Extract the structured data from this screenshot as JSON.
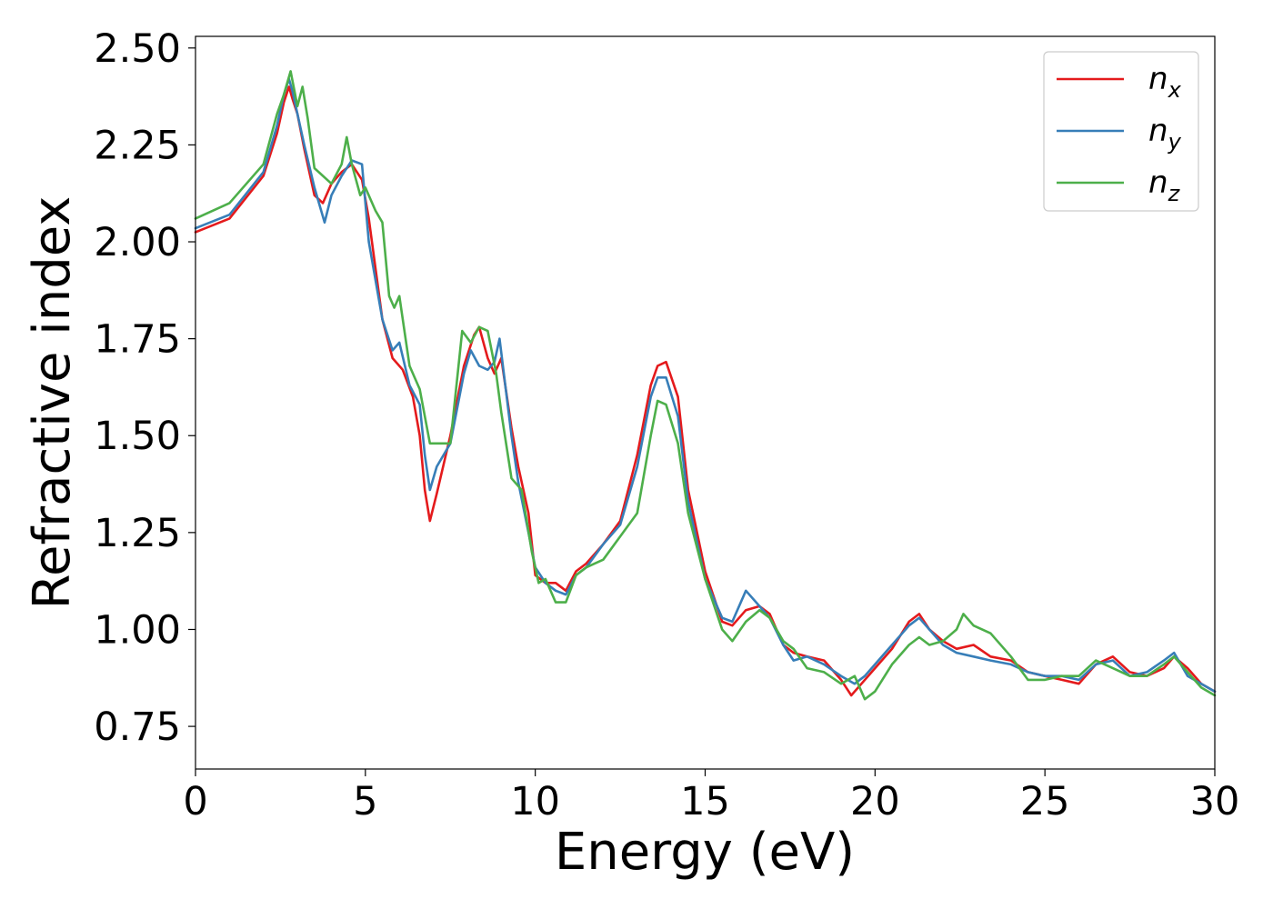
{
  "chart_data": {
    "type": "line",
    "xlabel": "Energy (eV)",
    "ylabel": "Refractive index",
    "xlim": [
      0,
      30
    ],
    "ylim": [
      0.64,
      2.53
    ],
    "xticks": [
      0,
      5,
      10,
      15,
      20,
      25,
      30
    ],
    "xtick_labels": [
      "0",
      "5",
      "10",
      "15",
      "20",
      "25",
      "30"
    ],
    "yticks": [
      0.75,
      1.0,
      1.25,
      1.5,
      1.75,
      2.0,
      2.25,
      2.5
    ],
    "ytick_labels": [
      "0.75",
      "1.00",
      "1.25",
      "1.50",
      "1.75",
      "2.00",
      "2.25",
      "2.50"
    ],
    "grid": false,
    "legend_position": "top-right",
    "series": [
      {
        "name": "n",
        "subscript": "x",
        "color": "#e41a1c",
        "x": [
          0,
          1.0,
          2.0,
          2.4,
          2.6,
          2.75,
          2.85,
          3.0,
          3.2,
          3.5,
          3.75,
          4.0,
          4.3,
          4.6,
          4.9,
          5.1,
          5.5,
          5.8,
          6.1,
          6.4,
          6.6,
          6.75,
          6.9,
          7.1,
          7.5,
          7.9,
          8.2,
          8.35,
          8.6,
          8.8,
          9.0,
          9.3,
          9.5,
          9.8,
          10.0,
          10.3,
          10.6,
          10.9,
          11.2,
          11.5,
          12.0,
          12.5,
          13.0,
          13.4,
          13.6,
          13.85,
          14.2,
          14.5,
          15.0,
          15.5,
          15.8,
          16.2,
          16.6,
          16.9,
          17.3,
          17.6,
          18.0,
          18.5,
          19.0,
          19.3,
          19.6,
          20.0,
          20.5,
          21.0,
          21.3,
          21.6,
          22.0,
          22.4,
          22.9,
          23.4,
          24.0,
          24.5,
          25.0,
          25.5,
          26.0,
          26.5,
          27.0,
          27.5,
          28.0,
          28.5,
          28.8,
          29.2,
          29.6,
          30.0
        ],
        "values": [
          2.025,
          2.06,
          2.17,
          2.28,
          2.36,
          2.4,
          2.37,
          2.33,
          2.24,
          2.12,
          2.1,
          2.15,
          2.18,
          2.2,
          2.16,
          2.06,
          1.8,
          1.7,
          1.67,
          1.6,
          1.5,
          1.36,
          1.28,
          1.35,
          1.5,
          1.68,
          1.76,
          1.78,
          1.7,
          1.66,
          1.7,
          1.52,
          1.42,
          1.3,
          1.14,
          1.12,
          1.12,
          1.1,
          1.15,
          1.17,
          1.22,
          1.28,
          1.45,
          1.63,
          1.68,
          1.69,
          1.6,
          1.36,
          1.15,
          1.02,
          1.01,
          1.05,
          1.06,
          1.04,
          0.96,
          0.94,
          0.93,
          0.92,
          0.87,
          0.83,
          0.86,
          0.9,
          0.95,
          1.02,
          1.04,
          1.0,
          0.97,
          0.95,
          0.96,
          0.93,
          0.92,
          0.89,
          0.88,
          0.87,
          0.86,
          0.91,
          0.93,
          0.89,
          0.88,
          0.9,
          0.93,
          0.9,
          0.86,
          0.84
        ]
      },
      {
        "name": "n",
        "subscript": "y",
        "color": "#377eb8",
        "x": [
          0,
          1.0,
          2.0,
          2.4,
          2.6,
          2.75,
          2.85,
          3.0,
          3.2,
          3.5,
          3.8,
          4.0,
          4.3,
          4.6,
          4.9,
          5.1,
          5.5,
          5.8,
          6.0,
          6.3,
          6.6,
          6.75,
          6.9,
          7.1,
          7.5,
          7.9,
          8.1,
          8.35,
          8.6,
          8.8,
          8.95,
          9.3,
          9.5,
          9.8,
          10.0,
          10.3,
          10.6,
          10.9,
          11.2,
          11.5,
          12.0,
          12.5,
          13.0,
          13.4,
          13.6,
          13.85,
          14.2,
          14.5,
          15.0,
          15.5,
          15.8,
          16.2,
          16.6,
          16.9,
          17.3,
          17.6,
          18.0,
          18.5,
          19.0,
          19.4,
          19.7,
          20.0,
          20.5,
          21.0,
          21.3,
          21.6,
          22.0,
          22.4,
          22.9,
          23.4,
          24.0,
          24.5,
          25.0,
          25.5,
          26.0,
          26.5,
          27.0,
          27.5,
          28.0,
          28.5,
          28.8,
          29.2,
          29.6,
          30.0
        ],
        "values": [
          2.035,
          2.07,
          2.18,
          2.3,
          2.38,
          2.42,
          2.39,
          2.33,
          2.25,
          2.14,
          2.05,
          2.12,
          2.17,
          2.21,
          2.2,
          2.0,
          1.8,
          1.72,
          1.74,
          1.63,
          1.58,
          1.45,
          1.36,
          1.42,
          1.48,
          1.66,
          1.72,
          1.68,
          1.67,
          1.69,
          1.75,
          1.5,
          1.38,
          1.25,
          1.16,
          1.12,
          1.1,
          1.09,
          1.14,
          1.16,
          1.22,
          1.27,
          1.42,
          1.6,
          1.65,
          1.65,
          1.55,
          1.33,
          1.13,
          1.03,
          1.02,
          1.1,
          1.06,
          1.03,
          0.96,
          0.92,
          0.93,
          0.91,
          0.88,
          0.86,
          0.88,
          0.91,
          0.96,
          1.01,
          1.03,
          1.0,
          0.96,
          0.94,
          0.93,
          0.92,
          0.91,
          0.89,
          0.88,
          0.88,
          0.87,
          0.91,
          0.92,
          0.88,
          0.89,
          0.92,
          0.94,
          0.88,
          0.86,
          0.84
        ]
      },
      {
        "name": "n",
        "subscript": "z",
        "color": "#4daf4a",
        "x": [
          0,
          1.0,
          2.0,
          2.4,
          2.6,
          2.8,
          3.0,
          3.15,
          3.3,
          3.5,
          4.0,
          4.3,
          4.45,
          4.6,
          4.85,
          5.0,
          5.3,
          5.5,
          5.7,
          5.85,
          6.0,
          6.3,
          6.6,
          6.9,
          7.2,
          7.5,
          7.85,
          8.1,
          8.35,
          8.6,
          8.85,
          9.0,
          9.3,
          9.6,
          9.9,
          10.1,
          10.3,
          10.6,
          10.9,
          11.2,
          11.5,
          12.0,
          12.5,
          13.0,
          13.4,
          13.6,
          13.85,
          14.2,
          14.5,
          15.0,
          15.5,
          15.8,
          16.2,
          16.6,
          16.9,
          17.3,
          17.6,
          18.0,
          18.5,
          19.0,
          19.4,
          19.7,
          20.0,
          20.5,
          21.0,
          21.3,
          21.6,
          22.0,
          22.4,
          22.6,
          22.9,
          23.4,
          24.0,
          24.5,
          25.0,
          25.5,
          26.0,
          26.5,
          27.0,
          27.5,
          28.0,
          28.5,
          28.8,
          29.2,
          29.6,
          30.0
        ],
        "values": [
          2.06,
          2.1,
          2.2,
          2.33,
          2.38,
          2.44,
          2.35,
          2.4,
          2.32,
          2.19,
          2.15,
          2.2,
          2.27,
          2.2,
          2.12,
          2.14,
          2.08,
          2.05,
          1.86,
          1.83,
          1.86,
          1.68,
          1.62,
          1.48,
          1.48,
          1.48,
          1.77,
          1.74,
          1.78,
          1.77,
          1.66,
          1.56,
          1.39,
          1.36,
          1.2,
          1.12,
          1.13,
          1.07,
          1.07,
          1.14,
          1.16,
          1.18,
          1.24,
          1.3,
          1.5,
          1.59,
          1.58,
          1.48,
          1.3,
          1.13,
          1.0,
          0.97,
          1.02,
          1.05,
          1.03,
          0.97,
          0.95,
          0.9,
          0.89,
          0.86,
          0.88,
          0.82,
          0.84,
          0.91,
          0.96,
          0.98,
          0.96,
          0.97,
          1.0,
          1.04,
          1.01,
          0.99,
          0.93,
          0.87,
          0.87,
          0.88,
          0.88,
          0.92,
          0.9,
          0.88,
          0.88,
          0.91,
          0.93,
          0.89,
          0.85,
          0.83
        ]
      }
    ]
  }
}
